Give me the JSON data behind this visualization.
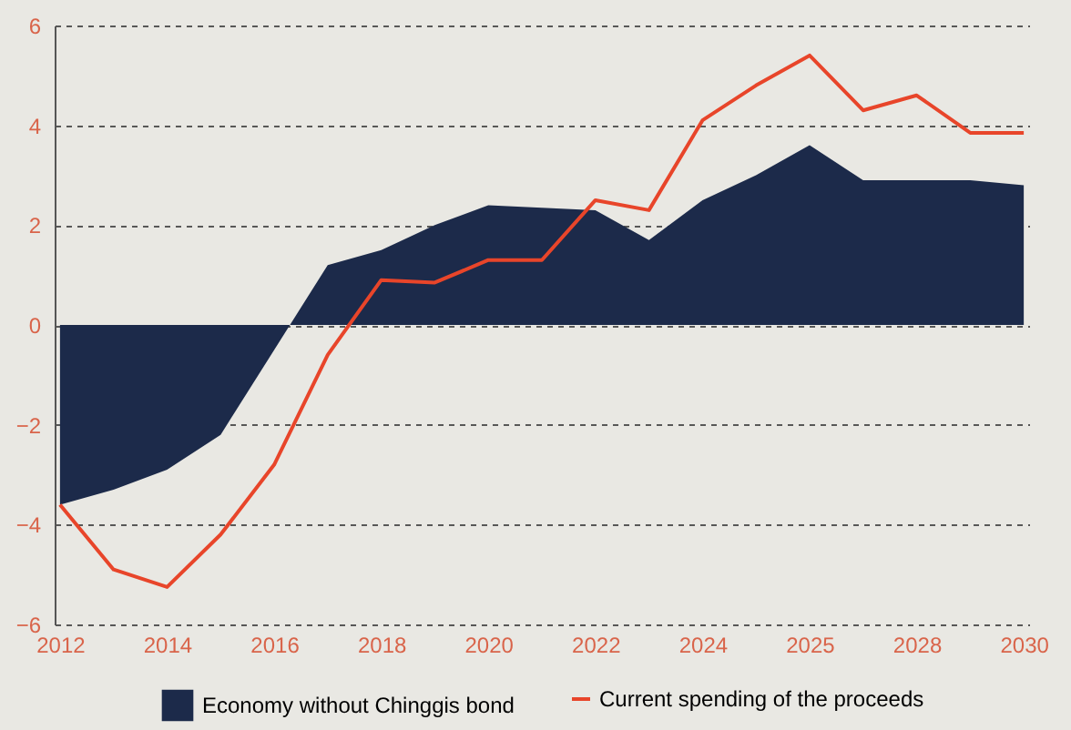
{
  "chart_data": {
    "type": "area",
    "categories": [
      "2012",
      null,
      "2014",
      null,
      "2016",
      null,
      "2018",
      null,
      "2020",
      null,
      "2022",
      null,
      "2024",
      null,
      "2025",
      null,
      "2028",
      null,
      "2030"
    ],
    "series": [
      {
        "name": "Economy without Chinggis bond",
        "color": "#1c2a4a",
        "values": [
          -3.6,
          -3.3,
          -2.9,
          -2.2,
          -0.5,
          1.2,
          1.5,
          2.0,
          2.4,
          2.35,
          2.3,
          1.7,
          2.5,
          3.0,
          3.6,
          2.9,
          2.9,
          2.9,
          2.8
        ]
      },
      {
        "name": "Current spending of the proceeds",
        "type": "line",
        "color": "#e8452a",
        "values": [
          -3.6,
          -4.9,
          -5.25,
          -4.2,
          -2.8,
          -0.6,
          0.9,
          0.85,
          1.3,
          1.3,
          2.5,
          2.3,
          4.1,
          4.8,
          5.4,
          4.3,
          4.6,
          3.85,
          3.85
        ]
      }
    ],
    "ylim": [
      -6,
      6
    ],
    "yticks": [
      -6,
      -4,
      -2,
      0,
      2,
      4,
      6
    ],
    "grid": "y",
    "legend": "bottom"
  }
}
